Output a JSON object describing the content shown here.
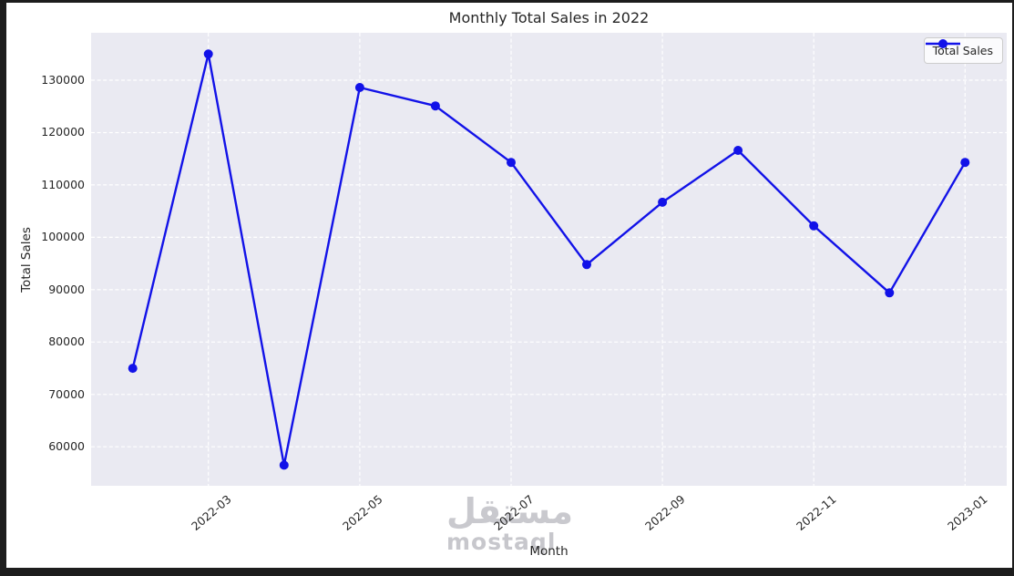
{
  "title": "Monthly Total Sales in 2022",
  "legend": {
    "label": "Total Sales"
  },
  "watermark": {
    "arabic": "مستقل",
    "latin": "mostaql"
  },
  "colors": {
    "line": "#1212e8",
    "plot_background": "#eaeaf2",
    "grid": "#ffffff",
    "text": "#262626",
    "frame": "#1d1d1d",
    "watermark": "#c8c8cd"
  },
  "chart_data": {
    "type": "line",
    "title": "Monthly Total Sales in 2022",
    "xlabel": "Month",
    "ylabel": "Total Sales",
    "x": [
      "2022-02",
      "2022-03",
      "2022-04",
      "2022-05",
      "2022-06",
      "2022-07",
      "2022-08",
      "2022-09",
      "2022-10",
      "2022-11",
      "2022-12",
      "2023-01"
    ],
    "series": [
      {
        "name": "Total Sales",
        "values": [
          75000,
          135000,
          56500,
          128600,
          125100,
          114300,
          94800,
          106700,
          116600,
          102200,
          89400,
          114300
        ]
      }
    ],
    "x_tick_labels": [
      "2022-03",
      "2022-05",
      "2022-07",
      "2022-09",
      "2022-11",
      "2023-01"
    ],
    "x_tick_indices": [
      1,
      3,
      5,
      7,
      9,
      11
    ],
    "y_ticks": [
      60000,
      70000,
      80000,
      90000,
      100000,
      110000,
      120000,
      130000
    ],
    "ylim": [
      52560,
      139050
    ],
    "x_margin": 0.55,
    "grid": "white-dashed",
    "legend_position": "upper-right",
    "marker": "circle"
  }
}
